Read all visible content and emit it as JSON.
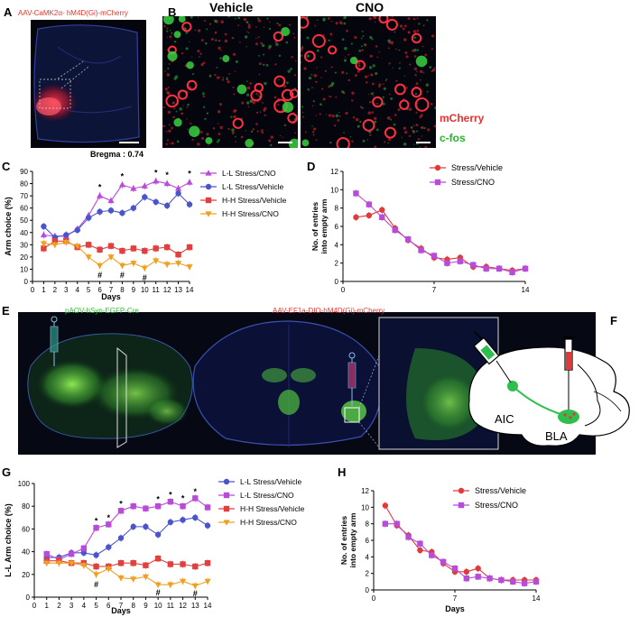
{
  "panels": {
    "A": {
      "letter": "A",
      "virus": "AAV-CaMK2α- hM4D(Gi)-mCherry",
      "bregma": "Bregma : 0.74",
      "virus_color": "#e2362e"
    },
    "B": {
      "letter": "B",
      "vehicle": "Vehicle",
      "cno": "CNO",
      "mcherry": "mCherry",
      "cfos": "c-fos",
      "mcherry_color": "#e23232",
      "cfos_color": "#27b427"
    },
    "C": {
      "letter": "C"
    },
    "D": {
      "letter": "D"
    },
    "E": {
      "letter": "E",
      "virus_left": "pAOV-hSyn-EGFP-Cre",
      "virus_right": "AAV-EF1a-DIO-hM4D(Gi)-mCherry",
      "left_color": "#2fbf2f",
      "right_color": "#e2362e"
    },
    "F": {
      "letter": "F",
      "aic": "AIC",
      "bla": "BLA"
    },
    "G": {
      "letter": "G"
    },
    "H": {
      "letter": "H"
    }
  },
  "chart_data": [
    {
      "id": "C",
      "type": "line",
      "xlabel": "Days",
      "ylabel": "Arm choice (%)",
      "x": [
        1,
        2,
        3,
        4,
        5,
        6,
        7,
        8,
        9,
        10,
        11,
        12,
        13,
        14
      ],
      "xticks": [
        0,
        1,
        2,
        3,
        4,
        5,
        6,
        7,
        8,
        9,
        10,
        11,
        12,
        13,
        14
      ],
      "yticks": [
        0,
        10,
        20,
        30,
        40,
        50,
        60,
        70,
        80,
        90
      ],
      "xlim": [
        0,
        14
      ],
      "ylim": [
        0,
        90
      ],
      "legend_position": "right",
      "series": [
        {
          "name": "L-L Stress/CNO",
          "color": "#b84bd8",
          "marker": "triangle-up",
          "values": [
            38,
            37,
            37,
            43,
            54,
            70,
            66,
            79,
            76,
            78,
            82,
            80,
            76,
            81
          ]
        },
        {
          "name": "L-L Stress/Vehicle",
          "color": "#4a55cc",
          "marker": "circle",
          "values": [
            45,
            36,
            38,
            42,
            52,
            57,
            58,
            56,
            60,
            69,
            65,
            62,
            72,
            63
          ]
        },
        {
          "name": "H-H Stress/Vehicle",
          "color": "#e04040",
          "marker": "square",
          "values": [
            27,
            33,
            33,
            28,
            30,
            26,
            29,
            25,
            27,
            25,
            27,
            28,
            22,
            28
          ]
        },
        {
          "name": "H-H Stress/CNO",
          "color": "#f0a020",
          "marker": "triangle-down",
          "values": [
            31,
            30,
            32,
            29,
            20,
            13,
            20,
            13,
            15,
            11,
            17,
            14,
            15,
            12
          ]
        }
      ],
      "annotations": [
        {
          "x": 6,
          "y": 77,
          "text": "*"
        },
        {
          "x": 8,
          "y": 86,
          "text": "*"
        },
        {
          "x": 11,
          "y": 89,
          "text": "*"
        },
        {
          "x": 12,
          "y": 87,
          "text": "*"
        },
        {
          "x": 14,
          "y": 88,
          "text": "*"
        },
        {
          "x": 6,
          "y": 5,
          "text": "#"
        },
        {
          "x": 8,
          "y": 5,
          "text": "#"
        },
        {
          "x": 10,
          "y": 3,
          "text": "#"
        }
      ]
    },
    {
      "id": "D",
      "type": "line",
      "xlabel": "",
      "ylabel": "No. of entries into empty arm",
      "x": [
        1,
        2,
        3,
        4,
        5,
        6,
        7,
        8,
        9,
        10,
        11,
        12,
        13,
        14
      ],
      "xticks": [
        0,
        7,
        14
      ],
      "yticks": [
        0,
        2,
        4,
        6,
        8,
        10,
        12
      ],
      "xlim": [
        0,
        14
      ],
      "ylim": [
        0,
        12
      ],
      "legend_position": "top-right",
      "series": [
        {
          "name": "Stress/Vehicle",
          "color": "#e03a3a",
          "marker": "circle",
          "values": [
            7.0,
            7.2,
            7.8,
            5.8,
            4.5,
            3.6,
            2.6,
            2.4,
            2.6,
            1.6,
            1.6,
            1.4,
            1.2,
            1.4
          ]
        },
        {
          "name": "Stress/CNO",
          "color": "#b84bd8",
          "marker": "square",
          "values": [
            9.6,
            8.4,
            7.0,
            5.6,
            4.6,
            3.4,
            2.8,
            2.0,
            2.2,
            1.8,
            1.4,
            1.4,
            1.0,
            1.4
          ]
        }
      ]
    },
    {
      "id": "G",
      "type": "line",
      "xlabel": "Days",
      "ylabel": "L-L Arm choice (%)",
      "x": [
        1,
        2,
        3,
        4,
        5,
        6,
        7,
        8,
        9,
        10,
        11,
        12,
        13,
        14
      ],
      "xticks": [
        0,
        1,
        2,
        3,
        4,
        5,
        6,
        7,
        8,
        9,
        10,
        11,
        12,
        13,
        14
      ],
      "yticks": [
        0,
        20,
        40,
        60,
        80,
        100
      ],
      "xlim": [
        0,
        14
      ],
      "ylim": [
        0,
        100
      ],
      "legend_position": "right",
      "series": [
        {
          "name": "L-L Stress/Vehicle",
          "color": "#4a55cc",
          "marker": "circle",
          "values": [
            35,
            35,
            39,
            39,
            37,
            44,
            52,
            62,
            62,
            55,
            66,
            68,
            70,
            63
          ]
        },
        {
          "name": "L-L Stress/CNO",
          "color": "#b84bd8",
          "marker": "square",
          "values": [
            38,
            33,
            38,
            43,
            61,
            64,
            76,
            80,
            78,
            80,
            84,
            80,
            87,
            79
          ]
        },
        {
          "name": "H-H Stress/Vehicle",
          "color": "#e04040",
          "marker": "square",
          "values": [
            32,
            32,
            30,
            30,
            27,
            27,
            30,
            30,
            28,
            34,
            29,
            29,
            27,
            30
          ]
        },
        {
          "name": "H-H Stress/CNO",
          "color": "#f0a020",
          "marker": "triangle-down",
          "values": [
            30,
            30,
            30,
            28,
            20,
            25,
            17,
            16,
            18,
            11,
            11,
            14,
            10,
            14
          ]
        }
      ],
      "annotations": [
        {
          "x": 5,
          "y": 67,
          "text": "*"
        },
        {
          "x": 6,
          "y": 70,
          "text": "*"
        },
        {
          "x": 7,
          "y": 82,
          "text": "*"
        },
        {
          "x": 10,
          "y": 86,
          "text": "*"
        },
        {
          "x": 11,
          "y": 90,
          "text": "*"
        },
        {
          "x": 12,
          "y": 87,
          "text": "*"
        },
        {
          "x": 13,
          "y": 93,
          "text": "*"
        },
        {
          "x": 5,
          "y": 11,
          "text": "#"
        },
        {
          "x": 10,
          "y": 4,
          "text": "#"
        },
        {
          "x": 13,
          "y": 3,
          "text": "#"
        }
      ]
    },
    {
      "id": "H",
      "type": "line",
      "xlabel": "Days",
      "ylabel": "No. of entries into empty arm",
      "x": [
        1,
        2,
        3,
        4,
        5,
        6,
        7,
        8,
        9,
        10,
        11,
        12,
        13,
        14
      ],
      "xticks": [
        0,
        7,
        14
      ],
      "yticks": [
        0,
        2,
        4,
        6,
        8,
        10,
        12
      ],
      "xlim": [
        0,
        14
      ],
      "ylim": [
        0,
        12
      ],
      "legend_position": "top-right",
      "series": [
        {
          "name": "Stress/Vehicle",
          "color": "#e03a3a",
          "marker": "circle",
          "values": [
            10.2,
            7.8,
            6.6,
            4.8,
            4.6,
            3.2,
            2.2,
            2.2,
            2.6,
            1.4,
            1.2,
            1.2,
            1.2,
            1.2
          ]
        },
        {
          "name": "Stress/CNO",
          "color": "#b84bd8",
          "marker": "square",
          "values": [
            8.0,
            8.0,
            6.4,
            5.6,
            4.2,
            3.4,
            2.6,
            1.4,
            1.6,
            1.4,
            1.2,
            1.0,
            0.8,
            1.0
          ]
        }
      ]
    }
  ]
}
